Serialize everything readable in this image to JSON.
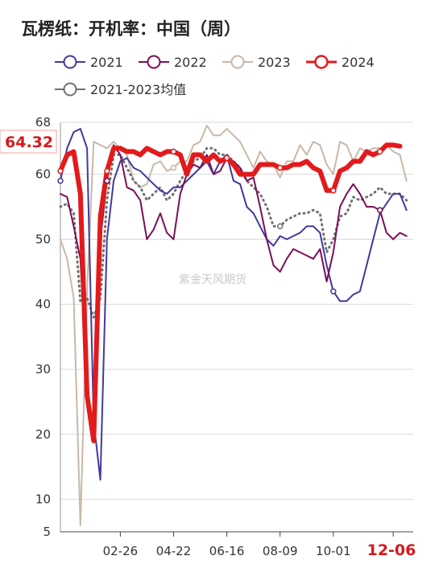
{
  "page": {
    "title": "瓦楞纸：开机率：中国（周）",
    "watermark": "紫金天风期货"
  },
  "chart_data": {
    "type": "line",
    "title": "瓦楞纸：开机率：中国（周）",
    "xlabel": "",
    "ylabel": "",
    "ylim": [
      5,
      68
    ],
    "yticks": [
      5,
      10,
      20,
      30,
      40,
      50,
      60,
      68
    ],
    "x_ticks": [
      "02-26",
      "04-22",
      "06-16",
      "08-09",
      "10-01",
      "12-06"
    ],
    "x_tick_weeks": [
      10,
      18,
      26,
      34,
      42,
      51
    ],
    "x_range": [
      1,
      54
    ],
    "legend": [
      "2021",
      "2022",
      "2023",
      "2024",
      "2021-2023均值"
    ],
    "legend_position": "top",
    "grid": true,
    "latest_label": "64.32",
    "series": [
      {
        "name": "2021",
        "color": "#3f3a9e",
        "style": "solid",
        "width": 2,
        "weeks": [
          1,
          2,
          3,
          4,
          5,
          6,
          7,
          8,
          9,
          10,
          11,
          12,
          13,
          14,
          15,
          16,
          17,
          18,
          19,
          20,
          21,
          22,
          23,
          24,
          25,
          26,
          27,
          28,
          29,
          30,
          31,
          32,
          33,
          34,
          35,
          36,
          37,
          38,
          39,
          40,
          41,
          42,
          43,
          44,
          45,
          46,
          47,
          48,
          49,
          50,
          51,
          52,
          53
        ],
        "values": [
          59,
          64,
          66.5,
          67,
          64,
          22,
          13,
          50,
          59,
          62,
          62.5,
          61,
          60.5,
          59.5,
          58.5,
          57.5,
          57,
          58,
          58,
          59,
          60,
          61,
          62,
          60,
          62,
          63,
          59,
          58.5,
          55,
          54,
          52,
          50,
          49,
          50.5,
          50,
          50.5,
          51,
          52,
          52,
          51,
          46,
          42,
          40.5,
          40.5,
          41.5,
          42,
          46,
          50,
          54,
          55.5,
          57,
          57,
          54.5
        ]
      },
      {
        "name": "2022",
        "color": "#7a0f56",
        "style": "solid",
        "width": 2,
        "weeks": [
          1,
          2,
          3,
          4,
          5,
          6,
          7,
          8,
          9,
          10,
          11,
          12,
          13,
          14,
          15,
          16,
          17,
          18,
          19,
          20,
          21,
          22,
          23,
          24,
          25,
          26,
          27,
          28,
          29,
          30,
          31,
          32,
          33,
          34,
          35,
          36,
          37,
          38,
          39,
          40,
          41,
          42,
          43,
          44,
          45,
          46,
          47,
          48,
          49,
          50,
          51,
          52,
          53
        ],
        "values": [
          57,
          56.5,
          52,
          47,
          26,
          19,
          50,
          59,
          64.5,
          63,
          58,
          57.5,
          56,
          50,
          51.5,
          54,
          51,
          50,
          57,
          60,
          61.5,
          61,
          63,
          60,
          60.5,
          62.5,
          62,
          61,
          59,
          59.5,
          55,
          50,
          46,
          45,
          47,
          48.5,
          48,
          47.5,
          47,
          48.5,
          43.5,
          48,
          55,
          57,
          58.5,
          57,
          55,
          55,
          54.5,
          51,
          50,
          51,
          50.5
        ]
      },
      {
        "name": "2023",
        "color": "#c9b8a8",
        "style": "solid",
        "width": 2,
        "weeks": [
          1,
          2,
          3,
          4,
          5,
          6,
          7,
          8,
          9,
          10,
          11,
          12,
          13,
          14,
          15,
          16,
          17,
          18,
          19,
          20,
          21,
          22,
          23,
          24,
          25,
          26,
          27,
          28,
          29,
          30,
          31,
          32,
          33,
          34,
          35,
          36,
          37,
          38,
          39,
          40,
          41,
          42,
          43,
          44,
          45,
          46,
          47,
          48,
          49,
          50,
          51,
          52,
          53
        ],
        "values": [
          50,
          47,
          41,
          6,
          42,
          65,
          64.5,
          64,
          65,
          64,
          63,
          59,
          58,
          58.5,
          61.5,
          62,
          60.5,
          61,
          62,
          62,
          64.5,
          65,
          67.5,
          66,
          66,
          67,
          66,
          65,
          63,
          61,
          63.5,
          62,
          61.5,
          59.5,
          62,
          62,
          64.5,
          63,
          65,
          64.5,
          61.5,
          60,
          65,
          64.5,
          62,
          64,
          63.5,
          64,
          64,
          64.5,
          63.5,
          63,
          59
        ]
      },
      {
        "name": "2024",
        "color": "#e31a1c",
        "style": "solid",
        "width": 6,
        "weeks": [
          1,
          2,
          3,
          4,
          5,
          6,
          7,
          8,
          9,
          10,
          11,
          12,
          13,
          14,
          15,
          16,
          17,
          18,
          19,
          20,
          21,
          22,
          23,
          24,
          25,
          26,
          27,
          28,
          29,
          30,
          31,
          32,
          33,
          34,
          35,
          36,
          37,
          38,
          39,
          40,
          41,
          42,
          43,
          44,
          45,
          46,
          47,
          48,
          49,
          50,
          51,
          52
        ],
        "values": [
          60.5,
          63,
          63.5,
          57,
          26,
          19,
          53.5,
          60.5,
          64,
          64,
          63.5,
          63.5,
          63,
          64,
          63.5,
          63,
          63.5,
          63.5,
          63,
          60,
          63,
          63,
          62,
          63,
          62,
          62.5,
          61.5,
          60,
          60,
          60,
          61.5,
          61.5,
          61.5,
          61,
          61,
          61.5,
          61.5,
          62,
          61,
          60.5,
          57.5,
          57.5,
          60.5,
          61,
          62,
          62,
          63.5,
          63,
          63.5,
          64.5,
          64.5,
          64.32
        ]
      },
      {
        "name": "2021-2023均值",
        "color": "#707070",
        "style": "dotted",
        "width": 3,
        "weeks": [
          1,
          2,
          3,
          4,
          5,
          6,
          7,
          8,
          9,
          10,
          11,
          12,
          13,
          14,
          15,
          16,
          17,
          18,
          19,
          20,
          21,
          22,
          23,
          24,
          25,
          26,
          27,
          28,
          29,
          30,
          31,
          32,
          33,
          34,
          35,
          36,
          37,
          38,
          39,
          40,
          41,
          42,
          43,
          44,
          45,
          46,
          47,
          48,
          49,
          50,
          51,
          52,
          53
        ],
        "values": [
          55,
          55.5,
          54,
          40.5,
          41,
          38,
          41,
          56,
          63,
          63,
          61,
          59,
          58,
          56,
          57,
          58,
          56,
          57,
          59,
          60.5,
          62,
          62.5,
          64,
          64,
          63,
          63,
          62,
          61,
          59,
          58,
          57,
          55,
          52,
          52,
          53,
          53.5,
          54,
          54,
          54.5,
          54,
          48,
          50,
          53.5,
          54,
          56.5,
          56,
          56.5,
          57,
          58,
          57,
          57,
          57,
          56
        ]
      }
    ]
  }
}
